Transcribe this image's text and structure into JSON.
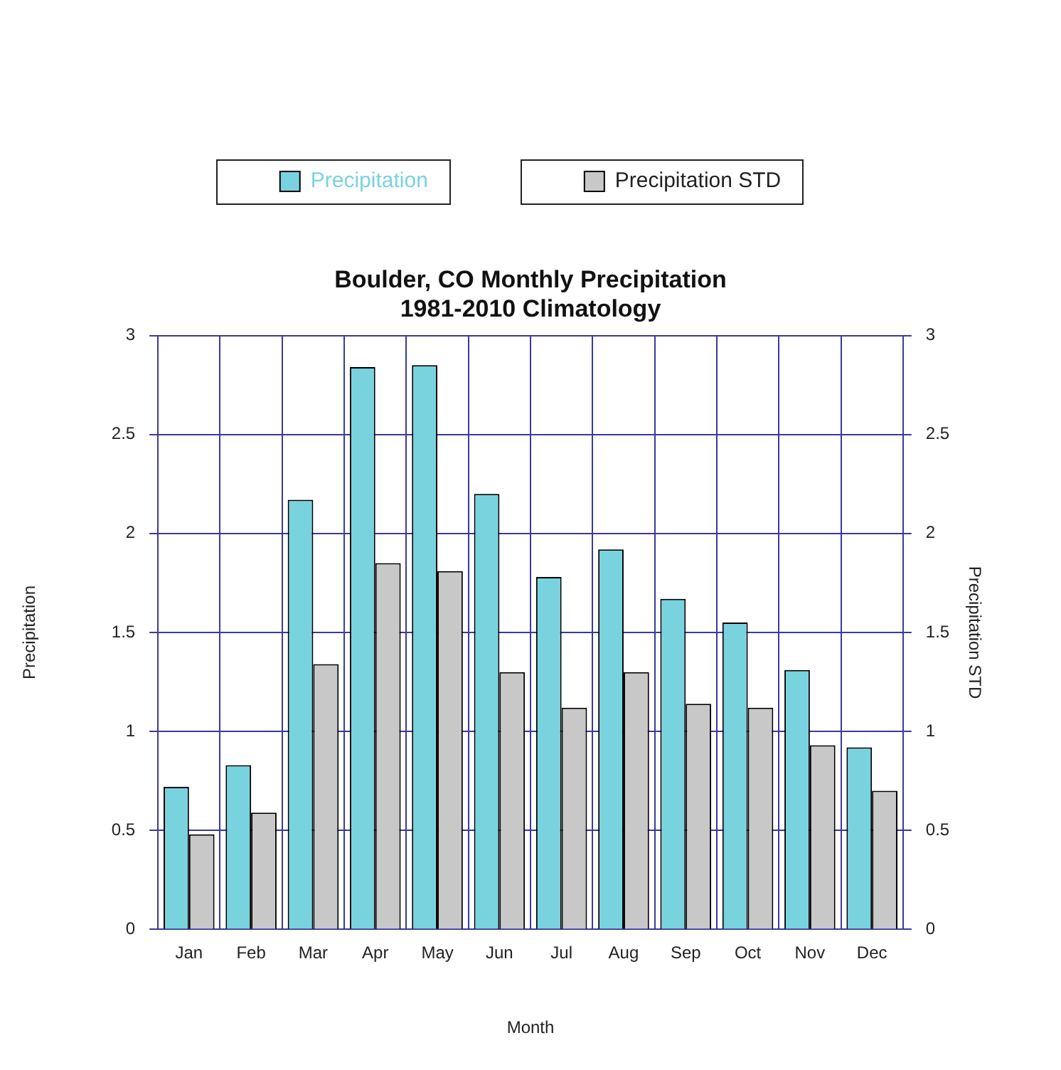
{
  "chart_data": {
    "type": "bar",
    "title": "Boulder, CO Monthly Precipitation",
    "subtitle": "1981-2010 Climatology",
    "xlabel": "Month",
    "ylabel": "Precipitation",
    "y2label": "Precipitation STD",
    "categories": [
      "Jan",
      "Feb",
      "Mar",
      "Apr",
      "May",
      "Jun",
      "Jul",
      "Aug",
      "Sep",
      "Oct",
      "Nov",
      "Dec"
    ],
    "series": [
      {
        "name": "Precipitation",
        "color": "#79d3df",
        "values": [
          0.72,
          0.83,
          2.17,
          2.84,
          2.85,
          2.2,
          1.78,
          1.92,
          1.67,
          1.55,
          1.31,
          0.92
        ]
      },
      {
        "name": "Precipitation STD",
        "color": "#c8c8c8",
        "axis": "y2",
        "values": [
          0.48,
          0.59,
          1.34,
          1.85,
          1.81,
          1.3,
          1.12,
          1.3,
          1.14,
          1.12,
          0.93,
          0.7
        ]
      }
    ],
    "ylim": [
      0,
      3
    ],
    "yticks": [
      0,
      0.5,
      1,
      1.5,
      2,
      2.5,
      3
    ],
    "y2lim": [
      0,
      3
    ],
    "y2ticks": [
      0,
      0.5,
      1,
      1.5,
      2,
      2.5,
      3
    ],
    "grid": true,
    "legend": "top"
  }
}
